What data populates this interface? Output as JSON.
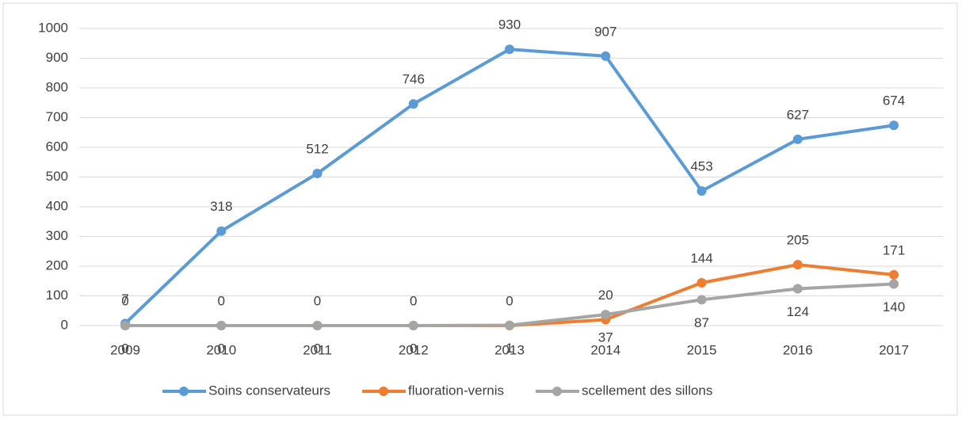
{
  "chart_data": {
    "type": "line",
    "categories": [
      "2009",
      "2010",
      "2011",
      "2012",
      "2013",
      "2014",
      "2015",
      "2016",
      "2017"
    ],
    "series": [
      {
        "name": "Soins conservateurs",
        "color": "#5b9bd5",
        "values": [
          7,
          318,
          512,
          746,
          930,
          907,
          453,
          627,
          674
        ]
      },
      {
        "name": "fluoration-vernis",
        "color": "#ed7d31",
        "values": [
          0,
          0,
          0,
          0,
          0,
          20,
          144,
          205,
          171
        ]
      },
      {
        "name": "scellement des sillons",
        "color": "#a5a5a5",
        "values": [
          0,
          0,
          0,
          0,
          1,
          37,
          87,
          124,
          140
        ]
      }
    ],
    "ylim": [
      0,
      1000
    ],
    "yticks": [
      0,
      100,
      200,
      300,
      400,
      500,
      600,
      700,
      800,
      900,
      1000
    ],
    "grid": true,
    "legend": "bottom"
  }
}
